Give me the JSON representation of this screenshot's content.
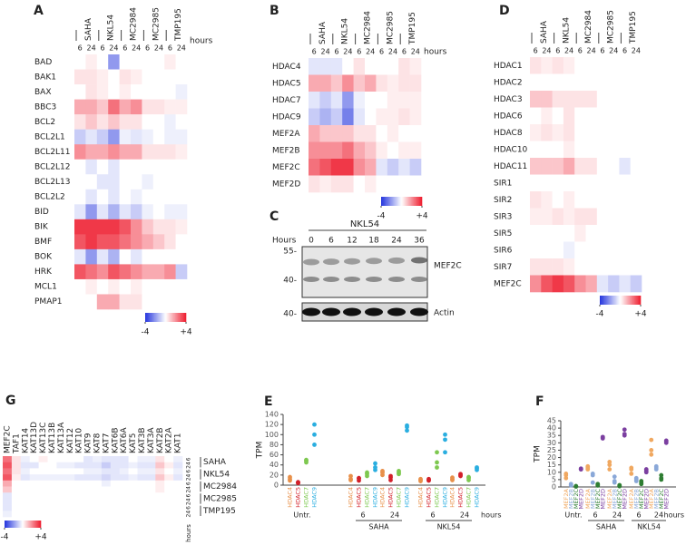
{
  "chart_data": [
    {
      "type": "heatmap",
      "label": "A",
      "rows": [
        "BAD",
        "BAK1",
        "BAX",
        "BBC3",
        "BCL2",
        "BCL2L1",
        "BCL2L11",
        "BCL2L12",
        "BCL2L13",
        "BCL2L2",
        "BID",
        "BIK",
        "BMF",
        "BOK",
        "HRK",
        "MCL1",
        "PMAP1"
      ],
      "columns": [
        "SAHA",
        "NKL54",
        "MC2984",
        "MC2985",
        "TMP195"
      ],
      "times": [
        "6",
        "24"
      ],
      "unit": "hours",
      "values": [
        [
          0,
          0.3,
          0,
          -2,
          0,
          0,
          0,
          0,
          0.3,
          0
        ],
        [
          0.5,
          0.5,
          0.3,
          0,
          0.5,
          0.3,
          0,
          0,
          0,
          0
        ],
        [
          0,
          0.5,
          0.3,
          0,
          0.3,
          0,
          0,
          0,
          0,
          -0.3
        ],
        [
          1.5,
          1.5,
          1,
          2.5,
          1.5,
          2,
          0.5,
          0.5,
          0.3,
          0.3
        ],
        [
          0.5,
          1,
          0.5,
          1,
          0.5,
          0.5,
          0,
          0,
          -0.3,
          0
        ],
        [
          -1,
          -0.5,
          -1,
          -2,
          -0.3,
          -0.5,
          -0.3,
          0,
          -0.3,
          -0.3
        ],
        [
          2,
          1.5,
          1.5,
          2,
          1.5,
          1.5,
          0.5,
          0.5,
          0.5,
          0.3
        ],
        [
          0,
          -0.5,
          0,
          -0.5,
          0,
          0,
          0,
          0,
          0,
          0
        ],
        [
          0,
          0,
          -0.5,
          -0.5,
          0,
          0,
          -0.3,
          0,
          0,
          0
        ],
        [
          0,
          -0.5,
          0,
          -0.5,
          0,
          -0.3,
          0,
          0,
          0,
          0
        ],
        [
          -0.5,
          -2,
          -0.5,
          -1.5,
          -0.5,
          -1,
          -0.3,
          0,
          -0.3,
          -0.3
        ],
        [
          3.5,
          3.5,
          3.5,
          3.5,
          3,
          2,
          1,
          0.5,
          0.5,
          0.3
        ],
        [
          3,
          3.5,
          3,
          3,
          2.5,
          2,
          1.5,
          1,
          0.5,
          0
        ],
        [
          -0.5,
          -2,
          -0.5,
          -1.5,
          0,
          -0.5,
          0,
          0,
          0,
          0
        ],
        [
          3,
          2.5,
          2,
          3,
          2.5,
          2,
          1.5,
          1.5,
          2,
          -1
        ],
        [
          0,
          0.3,
          0,
          0.3,
          0,
          0.3,
          0,
          0,
          0,
          0
        ],
        [
          0,
          0,
          1.5,
          1.5,
          0.5,
          0.5,
          0,
          0,
          0,
          0
        ]
      ],
      "zlim": [
        -4,
        4
      ],
      "colorbar_ticks": [
        -4,
        {
          "value": 4,
          "label": "+4"
        }
      ],
      "colors": {
        "low": "#2233dd",
        "mid": "#ffffff",
        "high": "#ee1c2e"
      }
    },
    {
      "type": "heatmap",
      "label": "B",
      "rows": [
        "HDAC4",
        "HDAC5",
        "HDAC7",
        "HDAC9",
        "MEF2A",
        "MEF2B",
        "MEF2C",
        "MEF2D"
      ],
      "columns": [
        "SAHA",
        "NKL54",
        "MC2984",
        "MC2985",
        "TMP195"
      ],
      "times": [
        "6",
        "24"
      ],
      "unit": "hours",
      "values": [
        [
          -0.5,
          -0.5,
          -0.5,
          0,
          0.5,
          0,
          0,
          0,
          0.5,
          0.3
        ],
        [
          1.5,
          1.5,
          1,
          2,
          1,
          1.5,
          0.5,
          0.3,
          0.5,
          0.5
        ],
        [
          -0.5,
          -1,
          -0.5,
          -2,
          -0.3,
          0,
          0,
          0.3,
          0.3,
          0.3
        ],
        [
          -1,
          -1.5,
          -1,
          -2.5,
          -0.5,
          0,
          0.3,
          0.3,
          0.5,
          0.3
        ],
        [
          1.5,
          1,
          1,
          1,
          0.5,
          0.5,
          0,
          0.3,
          0,
          0
        ],
        [
          2,
          2,
          2,
          2.5,
          1.5,
          1,
          0.3,
          0,
          0.3,
          0.3
        ],
        [
          2.5,
          3,
          3.5,
          3.5,
          2,
          1.5,
          -0.5,
          -1,
          -0.5,
          -1
        ],
        [
          0.5,
          0.3,
          0.5,
          0.5,
          0,
          0.3,
          0,
          0,
          0,
          0
        ]
      ],
      "zlim": [
        -4,
        4
      ],
      "colorbar_ticks": [
        -4,
        {
          "value": 4,
          "label": "+4"
        }
      ],
      "colors": {
        "low": "#2233dd",
        "mid": "#ffffff",
        "high": "#ee1c2e"
      }
    },
    {
      "type": "heatmap",
      "label": "D",
      "rows": [
        "HDAC1",
        "HDAC2",
        "HDAC3",
        "HDAC6",
        "HDAC8",
        "HDAC10",
        "HDAC11",
        "SIR1",
        "SIR2",
        "SIR3",
        "SIR5",
        "SIR6",
        "SIR7",
        "MEF2C"
      ],
      "columns": [
        "SAHA",
        "NKL54",
        "MC2984",
        "MC2985",
        "TMP195"
      ],
      "times": [
        "6",
        "24"
      ],
      "values": [
        [
          0.5,
          0.3,
          0.5,
          0.3,
          0,
          0,
          0,
          0,
          0,
          0
        ],
        [
          0,
          0,
          0,
          0,
          0,
          0,
          0,
          0,
          0,
          0
        ],
        [
          1,
          1,
          0.5,
          0.5,
          0.5,
          0.5,
          0,
          0,
          0,
          0
        ],
        [
          0,
          0.3,
          0,
          0.5,
          0,
          0,
          0,
          0,
          0,
          0
        ],
        [
          0.3,
          0.5,
          0.3,
          0.5,
          0,
          0,
          0,
          0,
          0,
          0
        ],
        [
          0,
          0,
          0,
          0.3,
          0,
          0,
          0,
          0,
          0,
          0
        ],
        [
          1,
          1,
          1,
          1.5,
          0.5,
          0.5,
          0,
          0,
          -0.5,
          0
        ],
        [
          0,
          0,
          0,
          0,
          0,
          0,
          0,
          0,
          0,
          0
        ],
        [
          0.5,
          0.3,
          0,
          0.3,
          0,
          0,
          0,
          0,
          0,
          0
        ],
        [
          0.3,
          0.3,
          0.5,
          0.3,
          0.5,
          0.5,
          0,
          0,
          0,
          0
        ],
        [
          0,
          0,
          0,
          0,
          0.3,
          0,
          0,
          0,
          0,
          0
        ],
        [
          0,
          0,
          0,
          -0.3,
          0,
          0,
          0,
          0,
          0,
          0
        ],
        [
          0.5,
          0.5,
          0.5,
          0.3,
          0,
          0,
          0,
          0,
          0,
          0
        ],
        [
          2,
          3,
          3.5,
          3,
          2,
          1.5,
          -0.5,
          -1,
          -0.5,
          -1
        ]
      ],
      "zlim": [
        -4,
        4
      ],
      "colorbar_ticks": [
        -4,
        {
          "value": 4,
          "label": "+4"
        }
      ],
      "colors": {
        "low": "#2233dd",
        "mid": "#ffffff",
        "high": "#ee1c2e"
      }
    },
    {
      "type": "heatmap",
      "label": "G",
      "orientation": "horizontal",
      "rows": [
        "MEF2C",
        "TAF1",
        "KAT14",
        "KAT13D",
        "KAT13C",
        "KAT13B",
        "KAT13A",
        "KAT12",
        "KAT10",
        "KAT9",
        "KAT8",
        "KAT7",
        "KAT6B",
        "KAT6A",
        "KAT5",
        "KAT3B",
        "KAT3A",
        "KAT2B",
        "KAT2A",
        "KAT1"
      ],
      "columns": [
        "SAHA",
        "NKL54",
        "MC2984",
        "MC2985",
        "TMP195"
      ],
      "times": [
        "6",
        "24"
      ],
      "unit": "hours",
      "values": [
        [
          2.5,
          0.5,
          -0.3,
          0,
          0.3,
          0,
          0,
          0,
          0,
          -0.5,
          -0.3,
          -0.5,
          -0.5,
          -0.5,
          0,
          -0.3,
          -0.3,
          0.5,
          0,
          -0.3
        ],
        [
          3,
          0.5,
          -0.5,
          -0.5,
          0,
          0,
          -0.3,
          -0.3,
          -0.5,
          -0.5,
          -0.5,
          -1,
          -0.5,
          -0.5,
          -0.3,
          -0.5,
          -0.5,
          1,
          0.3,
          -0.5
        ],
        [
          2.5,
          0.5,
          -0.3,
          0,
          0,
          0,
          0,
          0,
          0,
          -0.3,
          -0.3,
          -0.5,
          -0.5,
          -0.3,
          0,
          -0.3,
          -0.3,
          0.5,
          0,
          -0.3
        ],
        [
          3,
          0.3,
          -0.5,
          -0.3,
          -0.3,
          -0.3,
          -0.3,
          -0.3,
          -0.5,
          -0.5,
          -0.5,
          -0.8,
          -0.5,
          -0.5,
          -0.3,
          -0.5,
          -0.5,
          1,
          0.3,
          -0.5
        ],
        [
          1.5,
          0,
          0,
          0,
          0,
          0,
          0,
          0,
          0,
          0,
          0,
          -0.3,
          0,
          0,
          0,
          0,
          0,
          0.3,
          0,
          0
        ],
        [
          1,
          0,
          0,
          0,
          0,
          0,
          0,
          0,
          0,
          0,
          0,
          0,
          0,
          0,
          0,
          0,
          0,
          0.3,
          0,
          0
        ],
        [
          -0.5,
          0,
          0,
          0,
          0,
          0,
          0,
          0,
          0,
          0,
          0,
          0,
          0,
          0,
          0,
          0,
          0,
          0,
          0,
          0
        ],
        [
          -0.5,
          0,
          0,
          0,
          0,
          0,
          0,
          0,
          0,
          0,
          0,
          0,
          0,
          0,
          0,
          0,
          0,
          0,
          0,
          0
        ],
        [
          -0.5,
          0,
          0,
          0,
          0,
          0,
          0,
          0,
          0,
          0,
          0,
          0,
          0,
          0,
          0,
          0,
          0,
          0,
          0,
          0
        ],
        [
          -0.3,
          0,
          0,
          0,
          0,
          0,
          0,
          0,
          0,
          0,
          0,
          0,
          0,
          0,
          0,
          0,
          0,
          0,
          0,
          0
        ]
      ],
      "zlim": [
        -4,
        4
      ],
      "colorbar_ticks": [
        -4,
        {
          "value": 4,
          "label": "+4"
        }
      ],
      "colors": {
        "low": "#2233dd",
        "mid": "#ffffff",
        "high": "#ee1c2e"
      }
    },
    {
      "type": "strip",
      "label": "E",
      "ylabel": "TPM",
      "ylim": [
        0,
        140
      ],
      "yticks": [
        0,
        20,
        40,
        60,
        80,
        100,
        120,
        140
      ],
      "untreated": "Untr.",
      "groups": [
        {
          "name": "SAHA",
          "conditions": [
            "6",
            "24"
          ]
        },
        {
          "name": "NKL54",
          "conditions": [
            "6",
            "24"
          ]
        }
      ],
      "unit": "hours",
      "series": [
        {
          "name": "HDAC4",
          "color": "#e8904a",
          "values": [
            [
              16,
              12,
              9
            ],
            [
              18,
              12,
              10
            ],
            [
              28,
              25,
              20
            ],
            [
              12,
              10,
              8
            ],
            [
              10,
              15,
              12
            ]
          ]
        },
        {
          "name": "HDAC5",
          "color": "#d2202a",
          "values": [
            [
              5,
              4,
              6
            ],
            [
              13,
              9,
              14
            ],
            [
              18,
              15,
              10
            ],
            [
              10,
              12,
              9
            ],
            [
              20,
              18,
              22
            ]
          ]
        },
        {
          "name": "HDAC7",
          "color": "#7ec850",
          "values": [
            [
              50,
              45,
              48
            ],
            [
              22,
              25,
              18
            ],
            [
              25,
              28,
              22
            ],
            [
              45,
              65,
              35
            ],
            [
              10,
              16,
              14
            ]
          ]
        },
        {
          "name": "HDAC9",
          "color": "#2aaee0",
          "values": [
            [
              120,
              100,
              80
            ],
            [
              30,
              35,
              43
            ],
            [
              118,
              115,
              108
            ],
            [
              100,
              90,
              65
            ],
            [
              30,
              35,
              33
            ]
          ]
        }
      ]
    },
    {
      "type": "strip",
      "label": "F",
      "ylabel": "TPM",
      "ylim": [
        0,
        45
      ],
      "yticks": [
        0,
        5,
        10,
        15,
        20,
        25,
        30,
        35,
        40,
        45
      ],
      "untreated": "Untr.",
      "groups": [
        {
          "name": "SAHA",
          "conditions": [
            "6",
            "24"
          ]
        },
        {
          "name": "NKL54",
          "conditions": [
            "6",
            "24"
          ]
        }
      ],
      "unit": "hours",
      "series": [
        {
          "name": "MEF2A",
          "color": "#f0a860",
          "values": [
            [
              9,
              8,
              6
            ],
            [
              14,
              13,
              12
            ],
            [
              17,
              15,
              12
            ],
            [
              13,
              12,
              9
            ],
            [
              32,
              25,
              22
            ]
          ]
        },
        {
          "name": "MEF2B",
          "color": "#8aa8d8",
          "values": [
            [
              2,
              1,
              1.5
            ],
            [
              9,
              8,
              3
            ],
            [
              7,
              4,
              3
            ],
            [
              6,
              5,
              4
            ],
            [
              14,
              13,
              12
            ]
          ]
        },
        {
          "name": "MEF2C",
          "color": "#2e7d32",
          "values": [
            [
              0.5,
              0.3,
              0.6
            ],
            [
              2,
              1.5,
              1
            ],
            [
              1,
              0.5,
              1.2
            ],
            [
              4,
              3,
              2
            ],
            [
              8,
              6,
              5
            ]
          ]
        },
        {
          "name": "MEF2D",
          "color": "#7b3fa0",
          "values": [
            [
              12,
              12.5,
              12
            ],
            [
              33,
              34,
              33.5
            ],
            [
              39,
              36,
              35
            ],
            [
              12,
              11,
              10
            ],
            [
              31,
              30,
              31.5
            ]
          ]
        }
      ]
    }
  ],
  "blot": {
    "label": "C",
    "treatment": "NKL54",
    "time_label": "Hours",
    "times": [
      0,
      6,
      12,
      18,
      24,
      36
    ],
    "markers": [
      "55-",
      "40-"
    ],
    "bands": [
      "MEF2C",
      "Actin"
    ]
  }
}
